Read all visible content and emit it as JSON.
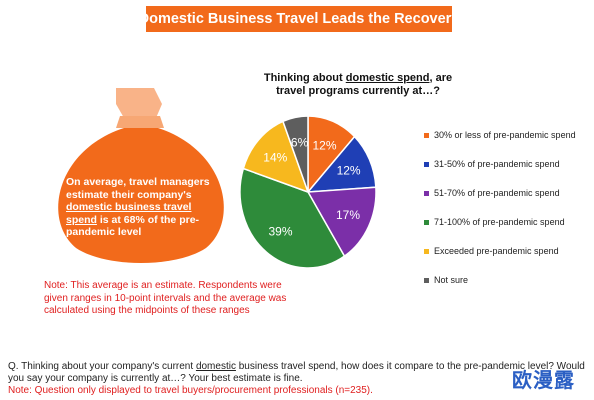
{
  "banner_title": "Domestic Business Travel Leads the Recovery",
  "bag": {
    "text_pre": "On average, travel managers estimate their company's ",
    "text_underlined": "domestic business travel spend",
    "text_post": " is at 68% of the pre-pandemic level"
  },
  "note": "Note: This average is an estimate. Respondents were given ranges in 10-point intervals and the average was calculated using the midpoints of these ranges",
  "chart_data": {
    "type": "pie",
    "title_pre": "Thinking about ",
    "title_underlined": "domestic spend",
    "title_post": ", are travel programs currently at…?",
    "categories": [
      "30% or less of pre-pandemic spend",
      "31-50% of pre-pandemic spend",
      "51-70% of pre-pandemic spend",
      "71-100% of pre-pandemic spend",
      "Exceeded pre-pandemic spend",
      "Not sure"
    ],
    "values": [
      12,
      12,
      17,
      39,
      14,
      6
    ],
    "labels": [
      "12%",
      "12%",
      "17%",
      "39%",
      "14%",
      "6%"
    ],
    "colors": [
      "#f26a1b",
      "#1f3fb5",
      "#7b2fa8",
      "#2e8b3a",
      "#f7b81e",
      "#5e5e5e"
    ],
    "legend_position": "right"
  },
  "question": {
    "pre": "Q. Thinking about your company's current ",
    "dom": "domestic",
    "post": " business travel spend, how does it compare to the pre-pandemic level? Would you say your company is currently at…? Your best estimate is fine."
  },
  "question_note": "Note: Question only displayed to travel buyers/procurement professionals (n=235).",
  "watermark": "欧漫露"
}
